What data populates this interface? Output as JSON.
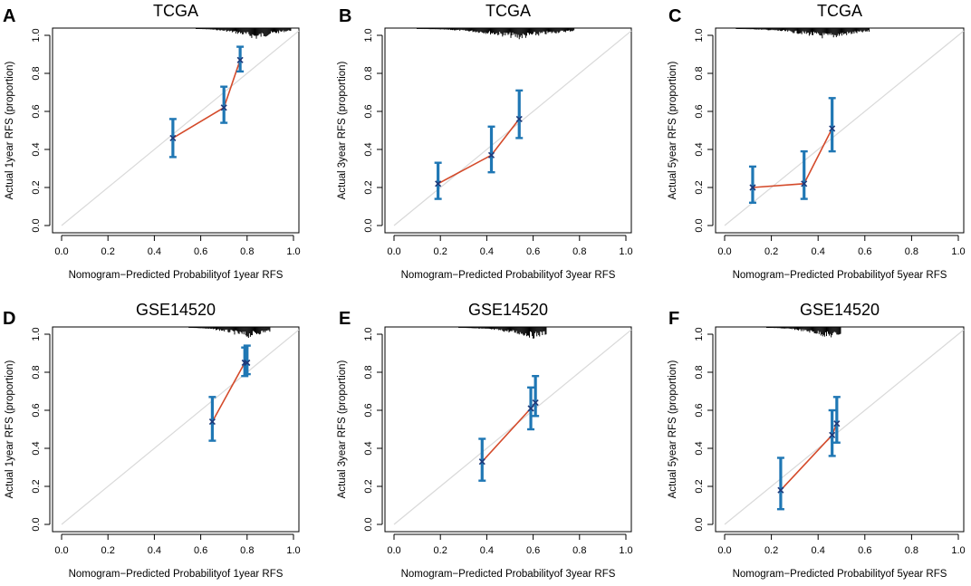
{
  "colors": {
    "bar": "#1f77b4",
    "line": "#d44a2a",
    "diag": "#d9d9d9",
    "point": "#1f3a7a",
    "rug": "#000000"
  },
  "chart_data": [
    {
      "panel": "A",
      "type": "scatter",
      "title": "TCGA",
      "xlabel": "Nomogram−Predicted Probabilityof 1year RFS",
      "ylabel": "Actual 1year RFS (proportion)",
      "xlim": [
        0,
        1
      ],
      "ylim": [
        0,
        1
      ],
      "xticks": [
        "0.0",
        "0.2",
        "0.4",
        "0.6",
        "0.8",
        "1.0"
      ],
      "yticks": [
        "0.0",
        "0.2",
        "0.4",
        "0.6",
        "0.8",
        "1.0"
      ],
      "points": [
        {
          "x": 0.48,
          "y": 0.46,
          "lo": 0.36,
          "hi": 0.56
        },
        {
          "x": 0.7,
          "y": 0.62,
          "lo": 0.54,
          "hi": 0.73
        },
        {
          "x": 0.77,
          "y": 0.87,
          "lo": 0.81,
          "hi": 0.94
        }
      ],
      "rug_range": [
        0.58,
        0.99
      ],
      "rug_peak": 0.84
    },
    {
      "panel": "B",
      "type": "scatter",
      "title": "TCGA",
      "xlabel": "Nomogram−Predicted Probabilityof 3year RFS",
      "ylabel": "Actual 3year RFS (proportion)",
      "xlim": [
        0,
        1
      ],
      "ylim": [
        0,
        1
      ],
      "xticks": [
        "0.0",
        "0.2",
        "0.4",
        "0.6",
        "0.8",
        "1.0"
      ],
      "yticks": [
        "0.0",
        "0.2",
        "0.4",
        "0.6",
        "0.8",
        "1.0"
      ],
      "points": [
        {
          "x": 0.19,
          "y": 0.22,
          "lo": 0.14,
          "hi": 0.33
        },
        {
          "x": 0.42,
          "y": 0.37,
          "lo": 0.28,
          "hi": 0.52
        },
        {
          "x": 0.54,
          "y": 0.56,
          "lo": 0.46,
          "hi": 0.71
        }
      ],
      "rug_range": [
        0.1,
        0.78
      ],
      "rug_peak": 0.54
    },
    {
      "panel": "C",
      "type": "scatter",
      "title": "TCGA",
      "xlabel": "Nomogram−Predicted Probabilityof 5year RFS",
      "ylabel": "Actual 5year RFS (proportion)",
      "xlim": [
        0,
        1
      ],
      "ylim": [
        0,
        1
      ],
      "xticks": [
        "0.0",
        "0.2",
        "0.4",
        "0.6",
        "0.8",
        "1.0"
      ],
      "yticks": [
        "0.0",
        "0.2",
        "0.4",
        "0.6",
        "0.8",
        "1.0"
      ],
      "points": [
        {
          "x": 0.12,
          "y": 0.2,
          "lo": 0.12,
          "hi": 0.31
        },
        {
          "x": 0.34,
          "y": 0.22,
          "lo": 0.14,
          "hi": 0.39
        },
        {
          "x": 0.46,
          "y": 0.51,
          "lo": 0.39,
          "hi": 0.67
        }
      ],
      "rug_range": [
        0.05,
        0.62
      ],
      "rug_peak": 0.44
    },
    {
      "panel": "D",
      "type": "scatter",
      "title": "GSE14520",
      "xlabel": "Nomogram−Predicted Probabilityof 1year RFS",
      "ylabel": "Actual 1year RFS (proportion)",
      "xlim": [
        0,
        1
      ],
      "ylim": [
        0,
        1
      ],
      "xticks": [
        "0.0",
        "0.2",
        "0.4",
        "0.6",
        "0.8",
        "1.0"
      ],
      "yticks": [
        "0.0",
        "0.2",
        "0.4",
        "0.6",
        "0.8",
        "1.0"
      ],
      "points": [
        {
          "x": 0.65,
          "y": 0.54,
          "lo": 0.44,
          "hi": 0.67
        },
        {
          "x": 0.79,
          "y": 0.85,
          "lo": 0.78,
          "hi": 0.93
        },
        {
          "x": 0.8,
          "y": 0.85,
          "lo": 0.79,
          "hi": 0.94
        }
      ],
      "rug_range": [
        0.55,
        0.9
      ],
      "rug_peak": 0.8
    },
    {
      "panel": "E",
      "type": "scatter",
      "title": "GSE14520",
      "xlabel": "Nomogram−Predicted Probabilityof 3year RFS",
      "ylabel": "Actual 3year RFS (proportion)",
      "xlim": [
        0,
        1
      ],
      "ylim": [
        0,
        1
      ],
      "xticks": [
        "0.0",
        "0.2",
        "0.4",
        "0.6",
        "0.8",
        "1.0"
      ],
      "yticks": [
        "0.0",
        "0.2",
        "0.4",
        "0.6",
        "0.8",
        "1.0"
      ],
      "points": [
        {
          "x": 0.38,
          "y": 0.33,
          "lo": 0.23,
          "hi": 0.45
        },
        {
          "x": 0.59,
          "y": 0.61,
          "lo": 0.5,
          "hi": 0.72
        },
        {
          "x": 0.61,
          "y": 0.64,
          "lo": 0.57,
          "hi": 0.78
        }
      ],
      "rug_range": [
        0.28,
        0.66
      ],
      "rug_peak": 0.6
    },
    {
      "panel": "F",
      "type": "scatter",
      "title": "GSE14520",
      "xlabel": "Nomogram−Predicted Probabilityof 5year RFS",
      "ylabel": "Actual 5year RFS (proportion)",
      "xlim": [
        0,
        1
      ],
      "ylim": [
        0,
        1
      ],
      "xticks": [
        "0.0",
        "0.2",
        "0.4",
        "0.6",
        "0.8",
        "1.0"
      ],
      "yticks": [
        "0.0",
        "0.2",
        "0.4",
        "0.6",
        "0.8",
        "1.0"
      ],
      "points": [
        {
          "x": 0.24,
          "y": 0.18,
          "lo": 0.08,
          "hi": 0.35
        },
        {
          "x": 0.46,
          "y": 0.47,
          "lo": 0.36,
          "hi": 0.6
        },
        {
          "x": 0.48,
          "y": 0.53,
          "lo": 0.43,
          "hi": 0.67
        }
      ],
      "rug_range": [
        0.18,
        0.5
      ],
      "rug_peak": 0.45
    }
  ]
}
